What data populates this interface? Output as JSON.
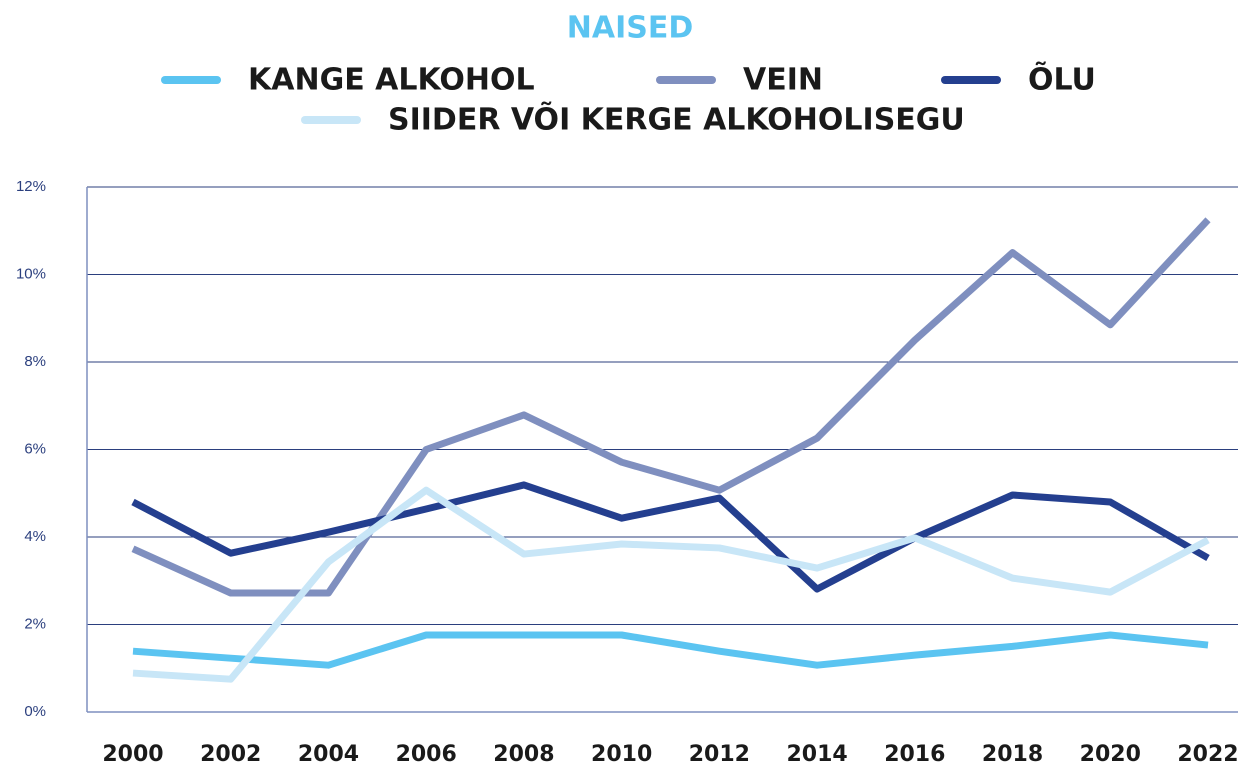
{
  "chart_data": {
    "type": "line",
    "title": "NAISED",
    "title_color": "#5bc4f1",
    "categories": [
      "2000",
      "2002",
      "2004",
      "2006",
      "2008",
      "2010",
      "2012",
      "2014",
      "2016",
      "2018",
      "2020",
      "2022"
    ],
    "series": [
      {
        "name": "KANGE ALKOHOL",
        "color": "#5bc4f1",
        "values": [
          1.39,
          1.23,
          1.07,
          1.76,
          1.76,
          1.76,
          1.39,
          1.07,
          1.3,
          1.5,
          1.76,
          1.53
        ]
      },
      {
        "name": "VEIN",
        "color": "#7f8fbf",
        "values": [
          3.73,
          2.72,
          2.72,
          6.0,
          6.79,
          5.71,
          5.07,
          6.26,
          8.5,
          10.5,
          8.85,
          11.25
        ]
      },
      {
        "name": "ÕLU",
        "color": "#243f8f",
        "values": [
          4.8,
          3.63,
          4.11,
          4.64,
          5.19,
          4.43,
          4.89,
          2.81,
          3.98,
          4.96,
          4.8,
          3.52
        ]
      },
      {
        "name": "SIIDER VÕI KERGE ALKOHOLISEGU",
        "color": "#c8e6f7",
        "values": [
          0.89,
          0.75,
          3.43,
          5.07,
          3.61,
          3.84,
          3.75,
          3.29,
          3.98,
          3.06,
          2.74,
          3.93
        ]
      }
    ],
    "ylim": [
      0,
      12
    ],
    "yticks": [
      {
        "value": 0,
        "label": "0%"
      },
      {
        "value": 2,
        "label": "2%"
      },
      {
        "value": 4,
        "label": "4%"
      },
      {
        "value": 6,
        "label": "6%"
      },
      {
        "value": 8,
        "label": "8%"
      },
      {
        "value": 10,
        "label": "10%"
      },
      {
        "value": 12,
        "label": "12%"
      }
    ],
    "grid": true,
    "legend": "top"
  }
}
